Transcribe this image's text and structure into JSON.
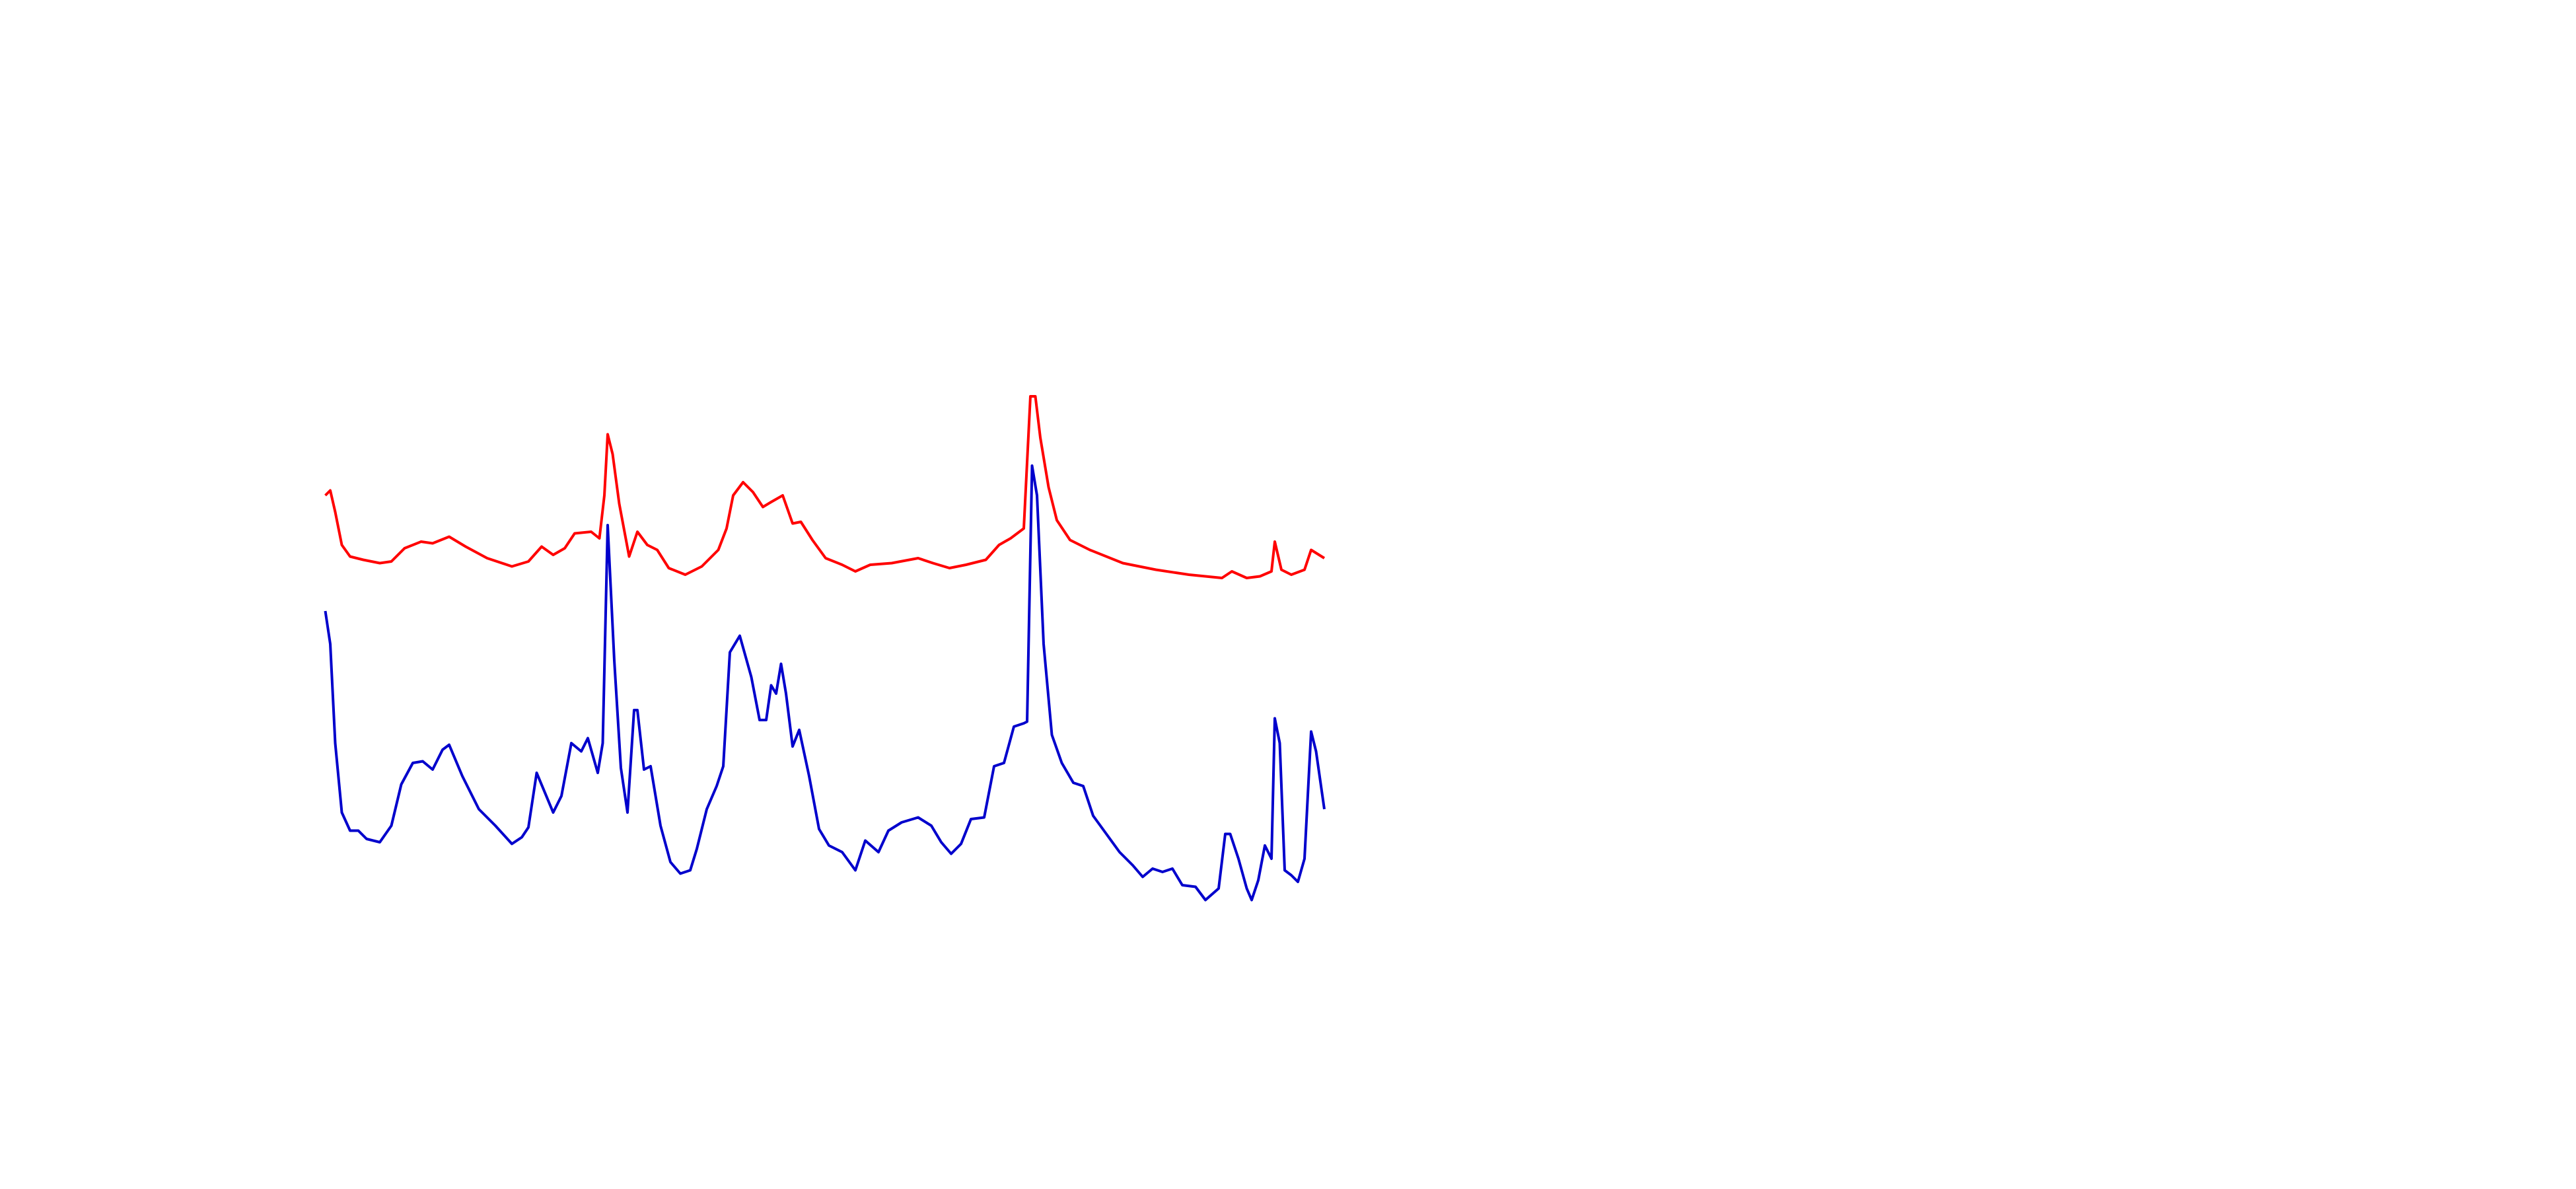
{
  "chart_data": {
    "type": "line",
    "xlim": [
      0,
      605
    ],
    "ylim": [
      0,
      320
    ],
    "grid": false,
    "series": [
      {
        "color": "#ff0000",
        "x": [
          0,
          3,
          6,
          10,
          15,
          23,
          33,
          40,
          48,
          58,
          65,
          75,
          85,
          98,
          113,
          123,
          131,
          138,
          145,
          151,
          161,
          166,
          169,
          171,
          174,
          178,
          184,
          189,
          195,
          201,
          208,
          218,
          228,
          238,
          243,
          247,
          253,
          259,
          265,
          270,
          277,
          283,
          288,
          295,
          303,
          313,
          321,
          330,
          343,
          359,
          368,
          378,
          388,
          400,
          408,
          415,
          423,
          427,
          430,
          433,
          438,
          443,
          451,
          463,
          483,
          503,
          523,
          543,
          549,
          558,
          566,
          573,
          575,
          579,
          585,
          593,
          597,
          605
        ],
        "values": [
          250,
          253,
          240,
          220,
          213,
          211,
          209,
          210,
          218,
          222,
          221,
          225,
          219,
          212,
          207,
          210,
          219,
          214,
          218,
          227,
          228,
          224,
          250,
          287,
          275,
          245,
          213,
          228,
          220,
          217,
          206,
          202,
          207,
          217,
          230,
          250,
          258,
          252,
          243,
          246,
          250,
          233,
          234,
          223,
          212,
          208,
          204,
          208,
          209,
          212,
          209,
          206,
          208,
          211,
          220,
          224,
          230,
          310,
          310,
          285,
          255,
          235,
          223,
          217,
          209,
          205,
          202,
          200,
          204,
          200,
          201,
          204,
          222,
          205,
          202,
          205,
          217,
          212
        ]
      },
      {
        "color": "#0000cc",
        "x": [
          0,
          3,
          6,
          10,
          15,
          20,
          25,
          33,
          40,
          46,
          53,
          59,
          65,
          71,
          75,
          83,
          93,
          103,
          113,
          119,
          123,
          128,
          133,
          138,
          143,
          149,
          155,
          159,
          165,
          168,
          171,
          175,
          179,
          183,
          187,
          189,
          193,
          197,
          203,
          209,
          215,
          221,
          225,
          231,
          237,
          241,
          245,
          251,
          258,
          263,
          267,
          270,
          273,
          276,
          279,
          283,
          287,
          293,
          299,
          305,
          313,
          321,
          327,
          335,
          341,
          349,
          359,
          367,
          373,
          379,
          385,
          391,
          399,
          405,
          411,
          417,
          423,
          425,
          428,
          431,
          435,
          440,
          446,
          453,
          459,
          465,
          473,
          481,
          489,
          495,
          501,
          507,
          513,
          519,
          527,
          533,
          541,
          545,
          548,
          553,
          558,
          561,
          565,
          569,
          573,
          575,
          578,
          581,
          585,
          589,
          593,
          597,
          600,
          605
        ],
        "values": [
          180,
          160,
          100,
          58,
          47,
          47,
          42,
          40,
          50,
          75,
          88,
          89,
          84,
          96,
          99,
          80,
          60,
          50,
          39,
          43,
          49,
          82,
          70,
          58,
          68,
          100,
          95,
          103,
          82,
          100,
          232,
          150,
          85,
          58,
          120,
          120,
          84,
          86,
          50,
          28,
          21,
          23,
          36,
          60,
          74,
          86,
          155,
          165,
          140,
          114,
          114,
          135,
          130,
          148,
          130,
          98,
          108,
          80,
          48,
          38,
          34,
          23,
          41,
          34,
          47,
          52,
          55,
          50,
          40,
          33,
          39,
          54,
          55,
          86,
          88,
          110,
          112,
          113,
          268,
          250,
          160,
          105,
          88,
          76,
          74,
          56,
          45,
          34,
          26,
          19,
          24,
          22,
          24,
          14,
          13,
          5,
          12,
          45,
          45,
          30,
          12,
          5,
          17,
          38,
          30,
          115,
          100,
          23,
          20,
          16,
          30,
          107,
          95,
          60
        ]
      }
    ]
  }
}
